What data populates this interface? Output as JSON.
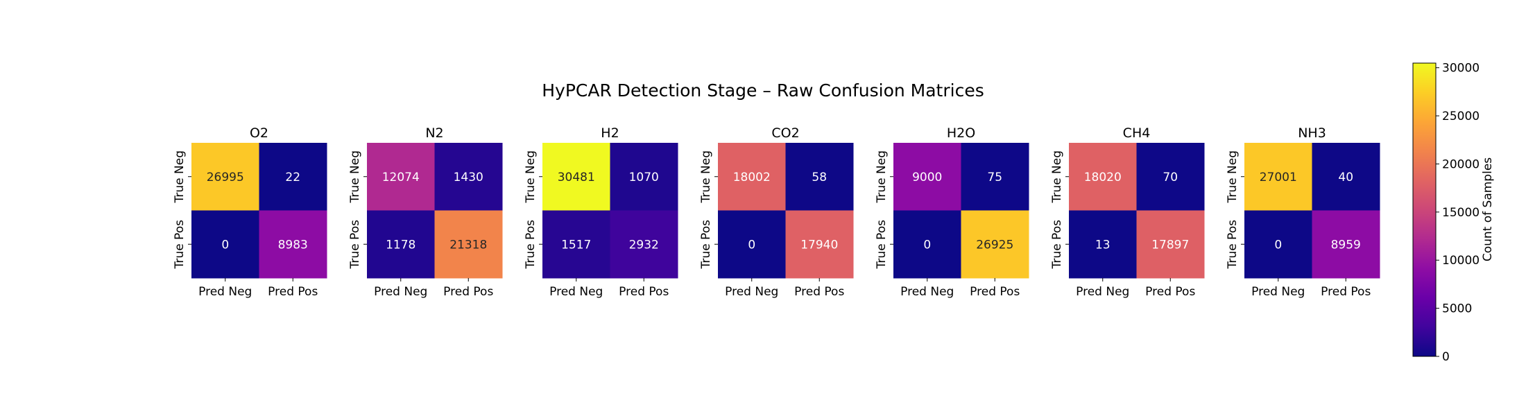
{
  "chart_data": {
    "type": "heatmap",
    "title": "HyPCAR Detection Stage – Raw Confusion Matrices",
    "row_labels": [
      "True Neg",
      "True Pos"
    ],
    "col_labels": [
      "Pred Neg",
      "Pred Pos"
    ],
    "colormap": "plasma",
    "vmin": 0,
    "vmax": 30481,
    "colorbar": {
      "label": "Count of Samples",
      "ticks": [
        0,
        5000,
        10000,
        15000,
        20000,
        25000,
        30000
      ]
    },
    "matrices": [
      {
        "name": "O2",
        "values": [
          [
            26995,
            22
          ],
          [
            0,
            8983
          ]
        ]
      },
      {
        "name": "N2",
        "values": [
          [
            12074,
            1430
          ],
          [
            1178,
            21318
          ]
        ]
      },
      {
        "name": "H2",
        "values": [
          [
            30481,
            1070
          ],
          [
            1517,
            2932
          ]
        ]
      },
      {
        "name": "CO2",
        "values": [
          [
            18002,
            58
          ],
          [
            0,
            17940
          ]
        ]
      },
      {
        "name": "H2O",
        "values": [
          [
            9000,
            75
          ],
          [
            0,
            26925
          ]
        ]
      },
      {
        "name": "CH4",
        "values": [
          [
            18020,
            70
          ],
          [
            13,
            17897
          ]
        ]
      },
      {
        "name": "NH3",
        "values": [
          [
            27001,
            40
          ],
          [
            0,
            8959
          ]
        ]
      }
    ]
  }
}
